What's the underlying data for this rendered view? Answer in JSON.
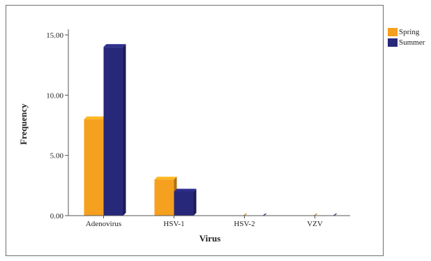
{
  "chart_data": {
    "type": "bar",
    "title": "",
    "xlabel": "Virus",
    "ylabel": "Frequency",
    "categories": [
      "Adenovirus",
      "HSV-1",
      "HSV-2",
      "VZV"
    ],
    "series": [
      {
        "name": "Spring",
        "values": [
          8,
          3,
          0,
          0
        ],
        "color": "#f5a01e"
      },
      {
        "name": "Summer",
        "values": [
          14,
          2,
          0,
          0
        ],
        "color": "#27287a"
      }
    ],
    "ylim": [
      0,
      15
    ],
    "yticks": [
      0,
      5,
      10,
      15
    ],
    "ytick_labels": [
      "0.00",
      "5.00",
      "10.00",
      "15.00"
    ],
    "grid": false,
    "legend_position": "right"
  }
}
